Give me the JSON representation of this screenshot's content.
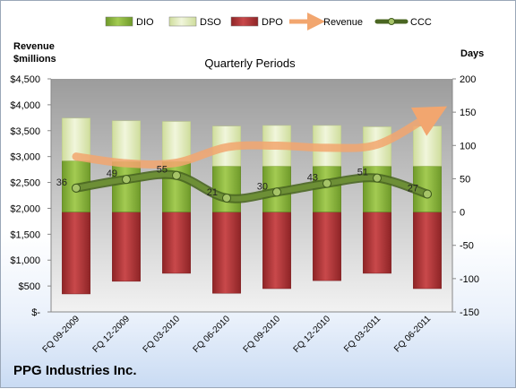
{
  "company": "PPG Industries Inc.",
  "chart_data": {
    "type": "bar",
    "title": "Quarterly Periods",
    "left_axis_label": [
      "Revenue",
      "$millions"
    ],
    "right_axis_label": "Days",
    "categories": [
      "FQ 09-2009",
      "FQ 12-2009",
      "FQ 03-2010",
      "FQ 06-2010",
      "FQ 09-2010",
      "FQ 12-2010",
      "FQ 03-2011",
      "FQ 06-2011"
    ],
    "left_axis": {
      "min": 0,
      "max": 4500,
      "step": 500,
      "tick_labels": [
        "$-",
        "$500",
        "$1,000",
        "$1,500",
        "$2,000",
        "$2,500",
        "$3,000",
        "$3,500",
        "$4,000",
        "$4,500"
      ]
    },
    "right_axis": {
      "min": -150,
      "max": 200,
      "step": 50,
      "tick_labels": [
        "-150",
        "-100",
        "-50",
        "0",
        "50",
        "100",
        "150",
        "200"
      ]
    },
    "series": [
      {
        "name": "DIO",
        "kind": "bar",
        "color": "#8db63c",
        "values": [
          77,
          76,
          76,
          69,
          69,
          69,
          69,
          69
        ]
      },
      {
        "name": "DSO",
        "kind": "bar",
        "color": "#dfe9b8",
        "values": [
          64,
          61,
          60,
          60,
          61,
          61,
          59,
          60
        ]
      },
      {
        "name": "DPO",
        "kind": "bar",
        "color": "#b0383a",
        "values": [
          -123,
          -104,
          -92,
          -122,
          -115,
          -103,
          -92,
          -115
        ]
      },
      {
        "name": "Revenue",
        "kind": "line",
        "axis": "left",
        "color": "#f2a66f",
        "values": [
          3000,
          2870,
          2880,
          3180,
          3210,
          3170,
          3230,
          3760
        ]
      },
      {
        "name": "CCC",
        "kind": "line",
        "axis": "right",
        "color": "#5f7f2e",
        "values": [
          36,
          49,
          55,
          21,
          30,
          43,
          51,
          27
        ],
        "labels": [
          "36",
          "49",
          "55",
          "21",
          "30",
          "43",
          "51",
          "27"
        ]
      }
    ],
    "legend_position": "top",
    "grid": false
  }
}
